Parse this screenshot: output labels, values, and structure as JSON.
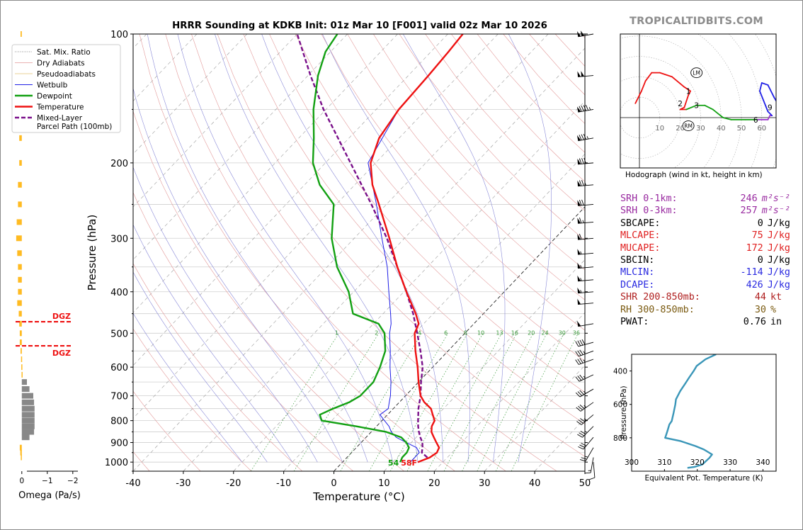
{
  "title": "HRRR Sounding at KDKB Init: 01z Mar 10 [F001] valid 02z Mar 10 2026",
  "brand": "TROPICALTIDBITS.COM",
  "colors": {
    "temperature": "#ee1111",
    "dewpoint": "#12a012",
    "wetbulb": "#1f1fe6",
    "parcel": "#7a0f8a",
    "omega_up": "#ffbb22",
    "omega_down": "#888888",
    "dgz": "#ee1111",
    "theta_e": "#3a96b8",
    "srh": "#992aa0",
    "mlcape": "#e02020",
    "mlcin": "#2a2ae0",
    "shr": "#b02020",
    "rh": "#7a5a10"
  },
  "legend": [
    {
      "label": "Sat. Mix. Ratio",
      "style": "mixratio"
    },
    {
      "label": "Dry Adiabats",
      "style": "dry"
    },
    {
      "label": "Pseudoadiabats",
      "style": "moist"
    },
    {
      "label": "Wetbulb",
      "style": "wetbulb"
    },
    {
      "label": "Dewpoint",
      "style": "dewpoint"
    },
    {
      "label": "Temperature",
      "style": "temperature"
    },
    {
      "label": "Mixed-Layer",
      "label2": "Parcel Path (100mb)",
      "style": "parcel"
    }
  ],
  "surface_labels": {
    "dewpoint": "54",
    "temperature": "58F"
  },
  "stats": [
    {
      "label": "SRH 0-1km:",
      "value": "246",
      "unit": "m²s⁻²",
      "color": "srh"
    },
    {
      "label": "SRH 0-3km:",
      "value": "257",
      "unit": "m²s⁻²",
      "color": "srh"
    },
    {
      "label": "SBCAPE:",
      "value": "0",
      "unit": "J/kg",
      "color": "black"
    },
    {
      "label": "MLCAPE:",
      "value": "75",
      "unit": "J/kg",
      "color": "mlcape"
    },
    {
      "label": "MUCAPE:",
      "value": "172",
      "unit": "J/kg",
      "color": "mlcape"
    },
    {
      "label": "SBCIN:",
      "value": "0",
      "unit": "J/kg",
      "color": "black"
    },
    {
      "label": "MLCIN:",
      "value": "-114",
      "unit": "J/kg",
      "color": "mlcin"
    },
    {
      "label": "DCAPE:",
      "value": "426",
      "unit": "J/kg",
      "color": "mlcin"
    },
    {
      "label": "SHR 200-850mb:",
      "value": "44",
      "unit": "kt",
      "color": "shr"
    },
    {
      "label": "RH 300-850mb:",
      "value": "30",
      "unit": "%",
      "color": "rh"
    },
    {
      "label": "PWAT:",
      "value": "0.76",
      "unit": "in",
      "color": "black"
    }
  ],
  "chart_data": [
    {
      "type": "line",
      "title": "HRRR Sounding at KDKB Init: 01z Mar 10 [F001] valid 02z Mar 10 2026",
      "xlabel": "Temperature (°C)",
      "ylabel": "Pressure (hPa)",
      "xlim": [
        -40,
        50
      ],
      "ylim": [
        1050,
        100
      ],
      "yscale": "log",
      "skew": true,
      "x_ticks": [
        -40,
        -30,
        -20,
        -10,
        0,
        10,
        20,
        30,
        40,
        50
      ],
      "y_ticks": [
        100,
        200,
        300,
        400,
        500,
        600,
        700,
        800,
        900,
        1000
      ],
      "mixing_ratio_labels": [
        "1",
        "2",
        "4",
        "6",
        "8",
        "10",
        "13",
        "16",
        "20",
        "24",
        "30",
        "36"
      ],
      "dgz_pressures": [
        470,
        535
      ],
      "dgz_label": "DGZ",
      "series": [
        {
          "name": "Temperature",
          "p": [
            1000,
            975,
            950,
            925,
            900,
            875,
            850,
            825,
            800,
            775,
            750,
            725,
            700,
            650,
            600,
            550,
            500,
            475,
            450,
            400,
            350,
            300,
            250,
            225,
            200,
            175,
            150,
            125,
            110,
            100
          ],
          "t": [
            15,
            16.5,
            17,
            16.5,
            15,
            13.5,
            12,
            11,
            10.5,
            9,
            7.5,
            5,
            3,
            0,
            -3,
            -6.5,
            -10,
            -11,
            -13.5,
            -19.5,
            -26,
            -33,
            -41.5,
            -46.5,
            -51,
            -54,
            -55.5,
            -56,
            -56.5,
            -57
          ]
        },
        {
          "name": "Dewpoint",
          "p": [
            1000,
            975,
            950,
            925,
            900,
            875,
            850,
            825,
            800,
            775,
            750,
            725,
            700,
            650,
            600,
            550,
            500,
            475,
            450,
            400,
            350,
            300,
            250,
            225,
            200,
            175,
            150,
            125,
            110,
            100
          ],
          "t": [
            11.5,
            11,
            11,
            10.5,
            9,
            7,
            3,
            -4,
            -12,
            -13.5,
            -12,
            -10,
            -9,
            -9,
            -10.5,
            -12.5,
            -16,
            -19,
            -26,
            -31,
            -38,
            -44.5,
            -50.5,
            -57,
            -62.5,
            -67,
            -72.5,
            -78,
            -81,
            -82
          ]
        },
        {
          "name": "Wetbulb",
          "p": [
            1000,
            975,
            950,
            925,
            900,
            875,
            850,
            825,
            800,
            775,
            750,
            725,
            700,
            650,
            600,
            550,
            500,
            475,
            450,
            400,
            350,
            300,
            250,
            200,
            150,
            125,
            110,
            100
          ],
          "t": [
            13.5,
            13.5,
            13.5,
            12,
            9,
            6,
            4,
            2.5,
            0.5,
            -1.5,
            -1,
            -2,
            -3,
            -5.5,
            -8.5,
            -11.5,
            -15,
            -16.5,
            -18.5,
            -23,
            -28,
            -34.5,
            -42,
            -51.5,
            -55.5,
            -56,
            -56.5,
            -57
          ]
        },
        {
          "name": "Parcel Path (100mb)",
          "p": [
            975,
            950,
            925,
            900,
            875,
            850,
            825,
            800,
            750,
            700,
            650,
            600,
            550,
            500,
            450,
            400,
            350,
            300,
            250,
            200,
            150,
            125,
            100
          ],
          "t": [
            16,
            14,
            13.2,
            12.2,
            10.8,
            9.5,
            8.3,
            7.2,
            5,
            3,
            0.5,
            -2,
            -5.5,
            -9.5,
            -14,
            -19.5,
            -26,
            -33.5,
            -43,
            -55,
            -70.5,
            -79.5,
            -90
          ]
        }
      ],
      "wind_barbs": [
        {
          "p": 100,
          "dir": 260,
          "spd": 100
        },
        {
          "p": 125,
          "dir": 265,
          "spd": 100
        },
        {
          "p": 150,
          "dir": 260,
          "spd": 95
        },
        {
          "p": 175,
          "dir": 260,
          "spd": 85
        },
        {
          "p": 200,
          "dir": 265,
          "spd": 80
        },
        {
          "p": 225,
          "dir": 265,
          "spd": 75
        },
        {
          "p": 250,
          "dir": 265,
          "spd": 70
        },
        {
          "p": 275,
          "dir": 265,
          "spd": 65
        },
        {
          "p": 300,
          "dir": 265,
          "spd": 60
        },
        {
          "p": 325,
          "dir": 265,
          "spd": 55
        },
        {
          "p": 350,
          "dir": 265,
          "spd": 55
        },
        {
          "p": 375,
          "dir": 265,
          "spd": 55
        },
        {
          "p": 400,
          "dir": 265,
          "spd": 55
        },
        {
          "p": 425,
          "dir": 265,
          "spd": 50
        },
        {
          "p": 475,
          "dir": 260,
          "spd": 50
        },
        {
          "p": 525,
          "dir": 255,
          "spd": 40
        },
        {
          "p": 550,
          "dir": 250,
          "spd": 35
        },
        {
          "p": 575,
          "dir": 250,
          "spd": 35
        },
        {
          "p": 625,
          "dir": 245,
          "spd": 35
        },
        {
          "p": 675,
          "dir": 240,
          "spd": 35
        },
        {
          "p": 725,
          "dir": 235,
          "spd": 35
        },
        {
          "p": 775,
          "dir": 230,
          "spd": 35
        },
        {
          "p": 825,
          "dir": 225,
          "spd": 35
        },
        {
          "p": 875,
          "dir": 220,
          "spd": 30
        },
        {
          "p": 925,
          "dir": 210,
          "spd": 25
        },
        {
          "p": 975,
          "dir": 190,
          "spd": 15
        },
        {
          "p": 1000,
          "dir": 175,
          "spd": 10
        }
      ]
    },
    {
      "type": "bar",
      "xlabel": "Omega (Pa/s)",
      "xlim": [
        0.3,
        -2.2
      ],
      "x_ticks": [
        0,
        -1,
        -2
      ],
      "p": [
        100,
        150,
        175,
        200,
        225,
        250,
        275,
        300,
        325,
        350,
        375,
        400,
        425,
        450,
        475,
        500,
        525,
        550,
        575,
        600,
        625,
        650,
        675,
        700,
        725,
        750,
        775,
        800,
        825,
        850,
        875,
        925,
        950,
        975
      ],
      "values": [
        0.05,
        0.05,
        0.1,
        0.1,
        0.15,
        0.15,
        0.2,
        0.22,
        0.18,
        0.15,
        0.15,
        0.15,
        0.18,
        0.12,
        0.1,
        0.08,
        0.08,
        0.05,
        0.03,
        0.02,
        0.01,
        -0.2,
        -0.3,
        -0.45,
        -0.48,
        -0.5,
        -0.5,
        -0.5,
        -0.5,
        -0.48,
        -0.3,
        0.08,
        0.06,
        0.04
      ]
    },
    {
      "type": "line",
      "title": "Hodograph (wind in kt, height in km)",
      "ring_labels": [
        "10",
        "20",
        "30",
        "40",
        "50",
        "60"
      ],
      "height_labels": [
        "1",
        "2",
        "3",
        "6",
        "9"
      ],
      "storm_motion_labels": [
        "LM",
        "RM"
      ],
      "u": [
        -2,
        1,
        3,
        6,
        10,
        16,
        22,
        25,
        24,
        22,
        20,
        23,
        28,
        32,
        36,
        41,
        45,
        52,
        58,
        63,
        64,
        65,
        63,
        59,
        60,
        63,
        66,
        70,
        71
      ],
      "v": [
        7,
        13,
        18,
        22,
        22,
        20,
        15,
        13,
        11,
        5,
        4,
        4,
        6,
        6,
        4,
        0,
        -1,
        -1,
        -1,
        -1,
        1,
        1,
        3,
        13,
        17,
        16,
        10,
        3,
        -1
      ],
      "colors": [
        "#ee1111",
        "#ee1111",
        "#ee1111",
        "#ee1111",
        "#ee1111",
        "#ee1111",
        "#ee1111",
        "#ee1111",
        "#ee1111",
        "#ee1111",
        "#ee1111",
        "#ee1111",
        "#12a012",
        "#12a012",
        "#12a012",
        "#12a012",
        "#12a012",
        "#12a012",
        "#12a012",
        "#9a33cc",
        "#9a33cc",
        "#9a33cc",
        "#1f1fe6",
        "#1f1fe6",
        "#1f1fe6",
        "#1f1fe6",
        "#1f1fe6",
        "#1f1fe6",
        "#1f1fe6"
      ],
      "markers": [
        {
          "label": "1",
          "u": 24,
          "v": 13
        },
        {
          "label": "2",
          "u": 20,
          "v": 7
        },
        {
          "label": "3",
          "u": 28,
          "v": 6
        },
        {
          "label": "6",
          "u": 57,
          "v": -1
        },
        {
          "label": "9",
          "u": 64,
          "v": 5
        }
      ],
      "lm": {
        "u": 28,
        "v": 22
      },
      "rm": {
        "u": 24,
        "v": -4
      }
    },
    {
      "type": "line",
      "xlabel": "Equivalent Pot. Temperature (K)",
      "ylabel": "Pressure (hPa)",
      "xlim": [
        300,
        344
      ],
      "ylim": [
        1000,
        300
      ],
      "x_ticks": [
        300,
        310,
        320,
        330,
        340
      ],
      "y_ticks": [
        400,
        600,
        800
      ],
      "p": [
        300,
        330,
        370,
        400,
        440,
        470,
        520,
        570,
        600,
        650,
        700,
        720,
        760,
        790,
        800,
        820,
        850,
        870,
        900,
        920,
        960,
        975,
        980
      ],
      "theta_e": [
        325.7,
        322.5,
        319.8,
        318.9,
        317.5,
        316.5,
        314.8,
        313.5,
        313.3,
        312.8,
        312.2,
        311.5,
        310.9,
        310.4,
        310.2,
        315,
        319.5,
        322,
        324.5,
        323.7,
        321.5,
        319,
        317
      ]
    }
  ]
}
